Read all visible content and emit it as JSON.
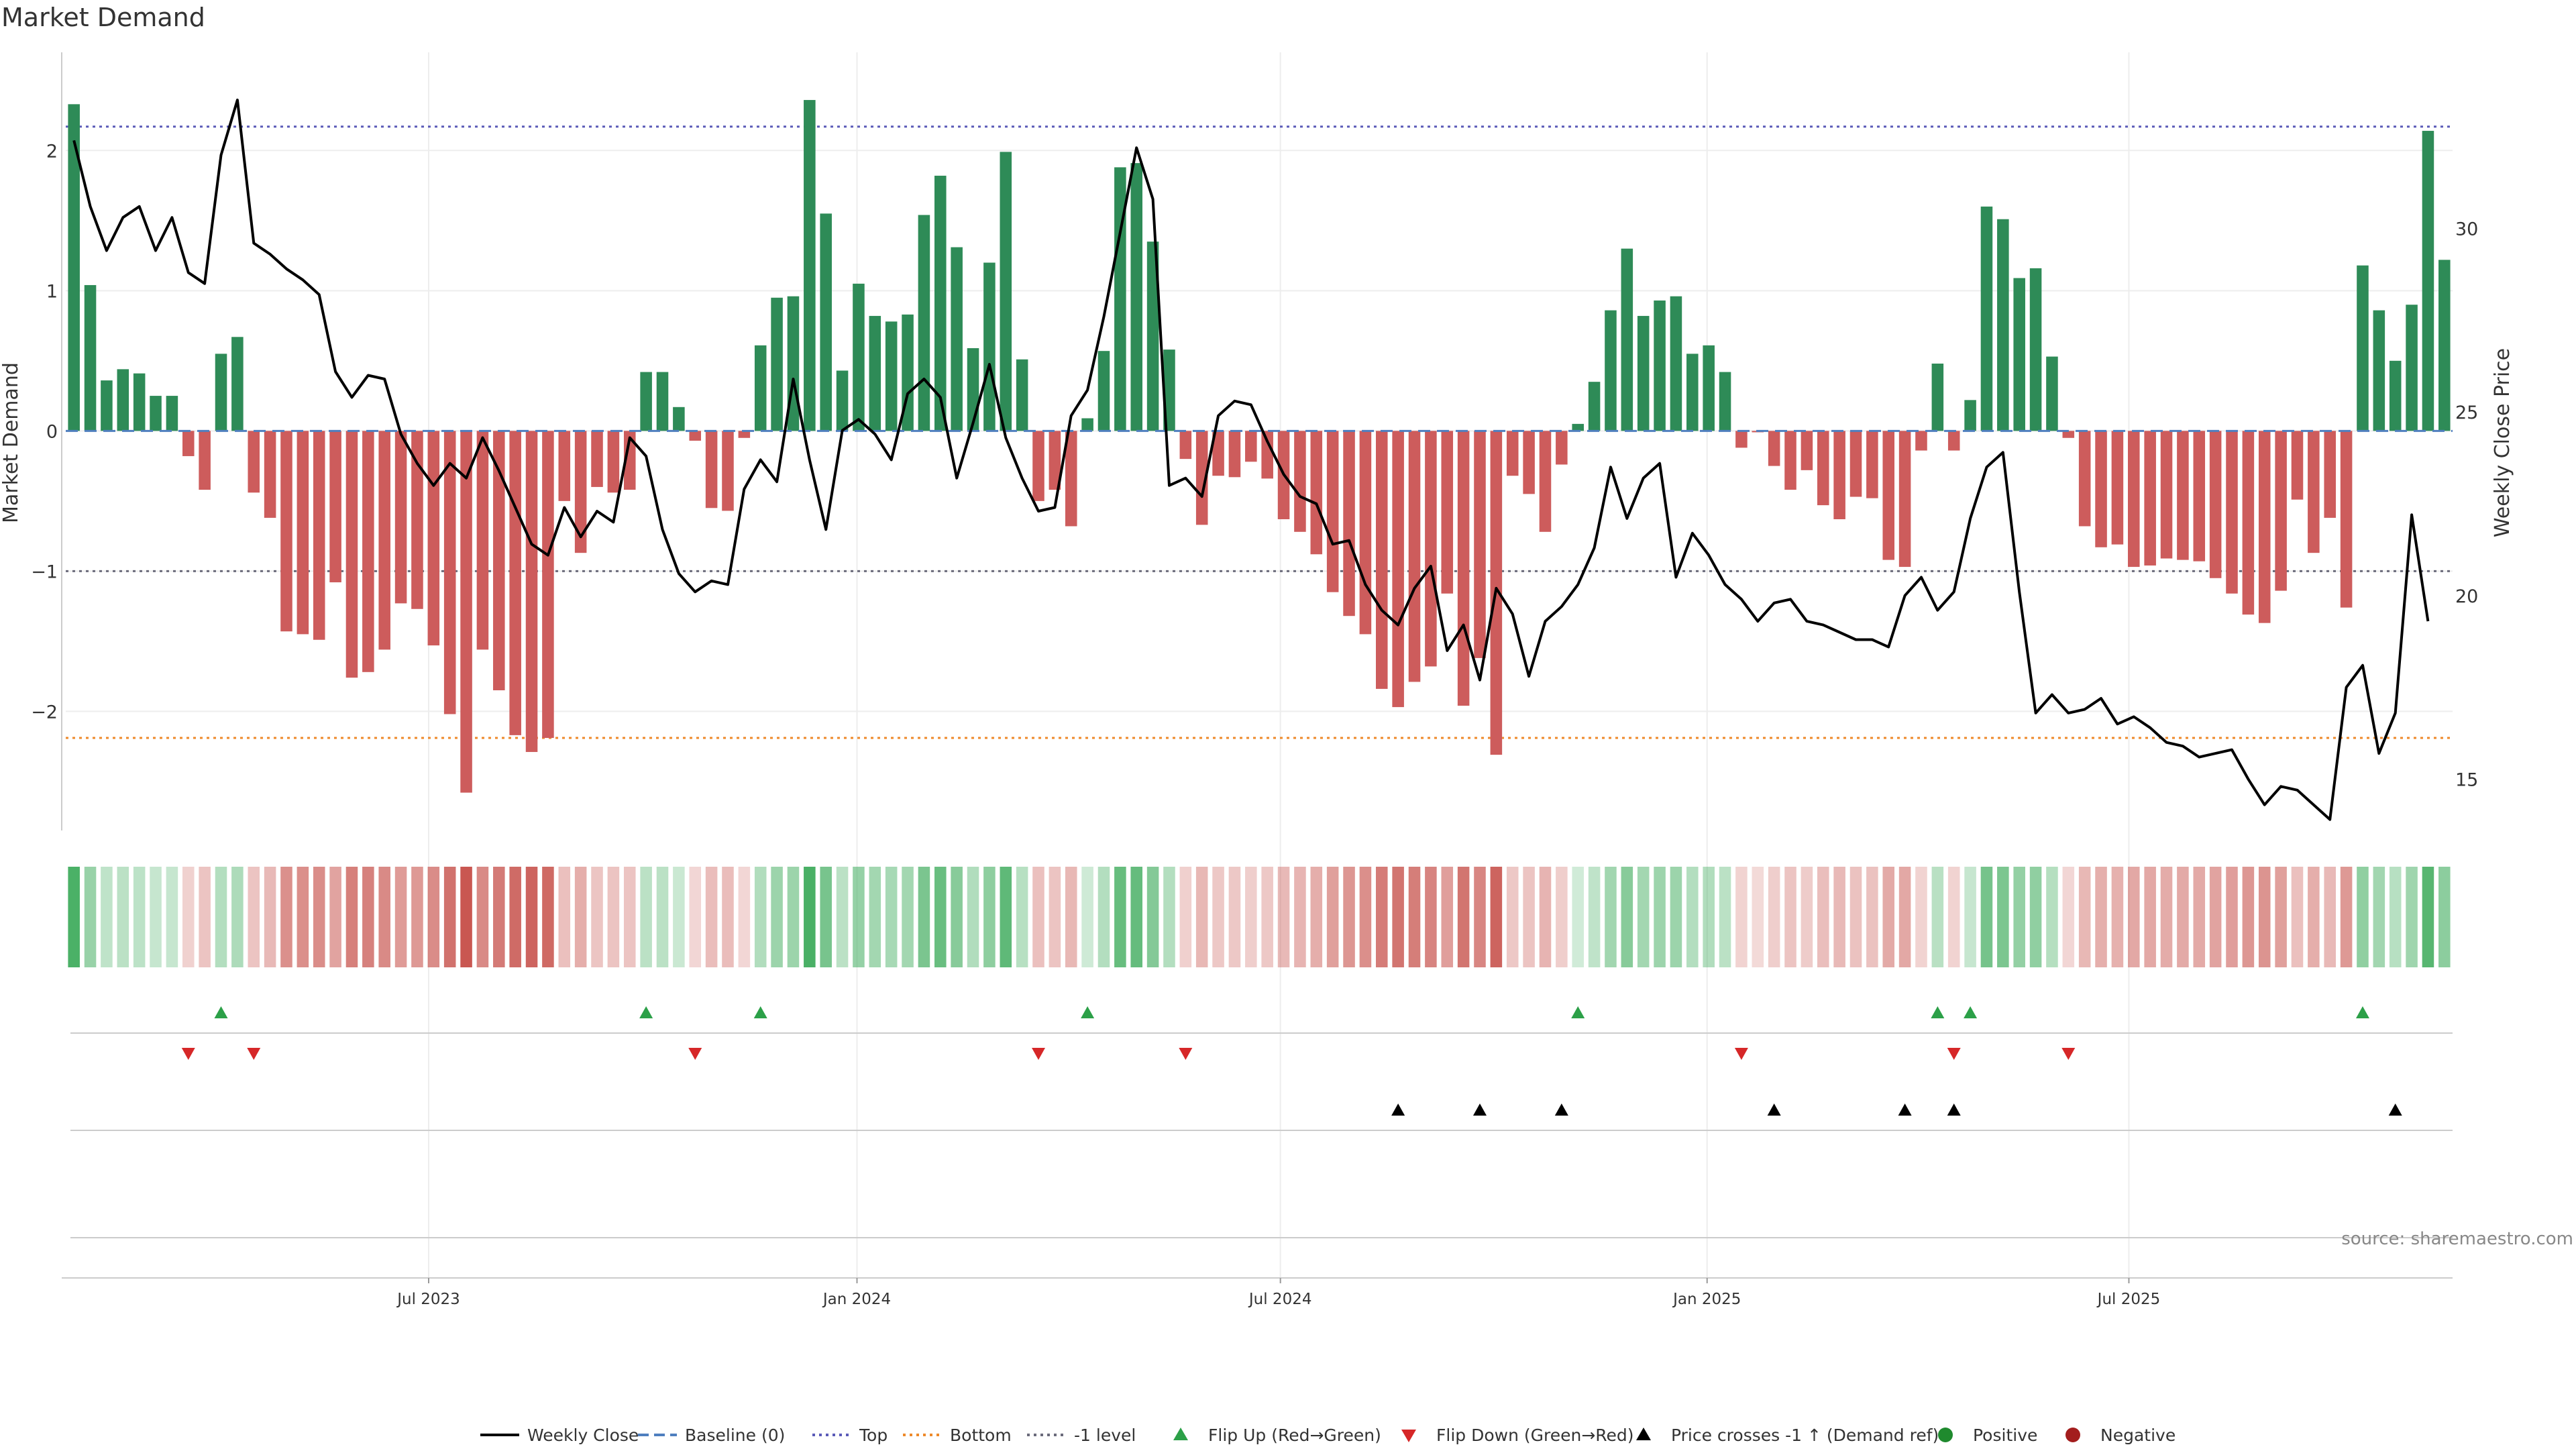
{
  "chart_data": {
    "type": "bar",
    "title": "Market Demand",
    "ylabel_left": "Market Demand",
    "ylabel_right": "Weekly Close Price",
    "left_yticks": [
      "2",
      "1",
      "0",
      "−1",
      "−2"
    ],
    "right_yticks": [
      "30",
      "25",
      "20",
      "15"
    ],
    "xticks": [
      "Jul 2023",
      "Jan 2024",
      "Jul 2024",
      "Jan 2025",
      "Jul 2025"
    ],
    "ylim_left": [
      -2.85,
      2.7
    ],
    "ylim_right": [
      13.6,
      34.8
    ],
    "levels": {
      "top": 2.17,
      "bottom": -2.19,
      "minus_one": -1.0,
      "baseline": 0.0
    },
    "demand": [
      2.33,
      1.04,
      0.36,
      0.44,
      0.41,
      0.25,
      0.25,
      -0.18,
      -0.42,
      0.55,
      0.67,
      -0.44,
      -0.62,
      -1.43,
      -1.45,
      -1.49,
      -1.08,
      -1.76,
      -1.72,
      -1.56,
      -1.23,
      -1.27,
      -1.53,
      -2.02,
      -2.58,
      -1.56,
      -1.85,
      -2.17,
      -2.29,
      -2.19,
      -0.5,
      -0.87,
      -0.4,
      -0.44,
      -0.42,
      0.42,
      0.42,
      0.17,
      -0.07,
      -0.55,
      -0.57,
      -0.05,
      0.61,
      0.95,
      0.96,
      2.36,
      1.55,
      0.43,
      1.05,
      0.82,
      0.78,
      0.83,
      1.54,
      1.82,
      1.31,
      0.59,
      1.2,
      1.99,
      0.51,
      -0.5,
      -0.42,
      -0.68,
      0.09,
      0.57,
      1.88,
      1.91,
      1.35,
      0.58,
      -0.2,
      -0.67,
      -0.32,
      -0.33,
      -0.22,
      -0.34,
      -0.63,
      -0.72,
      -0.88,
      -1.15,
      -1.32,
      -1.45,
      -1.84,
      -1.97,
      -1.79,
      -1.68,
      -1.16,
      -1.96,
      -1.62,
      -2.31,
      -0.32,
      -0.45,
      -0.72,
      -0.24,
      0.05,
      0.35,
      0.86,
      1.3,
      0.82,
      0.93,
      0.96,
      0.55,
      0.61,
      0.42,
      -0.12,
      -0.01,
      -0.25,
      -0.42,
      -0.28,
      -0.53,
      -0.63,
      -0.47,
      -0.48,
      -0.92,
      -0.97,
      -0.14,
      0.48,
      -0.14,
      0.22,
      1.6,
      1.51,
      1.09,
      1.16,
      0.53,
      -0.05,
      -0.68,
      -0.83,
      -0.81,
      -0.97,
      -0.96,
      -0.91,
      -0.92,
      -0.93,
      -1.05,
      -1.16,
      -1.31,
      -1.37,
      -1.14,
      -0.49,
      -0.87,
      -0.62,
      -1.26,
      1.18,
      0.86,
      0.5,
      0.9,
      2.14,
      1.22
    ],
    "close": [
      32.4,
      30.6,
      29.4,
      30.3,
      30.6,
      29.4,
      30.3,
      28.8,
      28.5,
      32.0,
      33.5,
      29.6,
      29.3,
      28.9,
      28.6,
      28.2,
      26.1,
      25.4,
      26.0,
      25.9,
      24.4,
      23.6,
      23.0,
      23.6,
      23.2,
      24.3,
      23.4,
      22.4,
      21.4,
      21.1,
      22.4,
      21.6,
      22.3,
      22.0,
      24.3,
      23.8,
      21.8,
      20.6,
      20.1,
      20.4,
      20.3,
      22.9,
      23.7,
      23.1,
      25.9,
      23.7,
      21.8,
      24.5,
      24.8,
      24.4,
      23.7,
      25.5,
      25.9,
      25.4,
      23.2,
      24.7,
      26.3,
      24.3,
      23.2,
      22.3,
      22.4,
      24.9,
      25.6,
      27.6,
      29.9,
      32.2,
      30.8,
      23.0,
      23.2,
      22.7,
      24.9,
      25.3,
      25.2,
      24.2,
      23.3,
      22.7,
      22.5,
      21.4,
      21.5,
      20.3,
      19.6,
      19.2,
      20.2,
      20.8,
      18.5,
      19.2,
      17.7,
      20.2,
      19.5,
      17.8,
      19.3,
      19.7,
      20.3,
      21.3,
      23.5,
      22.1,
      23.2,
      23.6,
      20.5,
      21.7,
      21.1,
      20.3,
      19.9,
      19.3,
      19.8,
      19.9,
      19.3,
      19.2,
      19.0,
      18.8,
      18.8,
      18.6,
      20.0,
      20.5,
      19.6,
      20.1,
      22.1,
      23.5,
      23.9,
      20.1,
      16.8,
      17.3,
      16.8,
      16.9,
      17.2,
      16.5,
      16.7,
      16.4,
      16.0,
      15.9,
      15.6,
      15.7,
      15.8,
      15.0,
      14.3,
      14.8,
      14.7,
      14.3,
      13.9,
      17.5,
      18.1,
      15.7,
      16.8,
      22.2,
      19.3
    ]
  },
  "legend": [
    {
      "label": "Weekly Close",
      "icon": "line-solid",
      "color": "#000000"
    },
    {
      "label": "Baseline (0)",
      "icon": "line-dashed",
      "color": "#4f7fbf"
    },
    {
      "label": "Top",
      "icon": "line-dotted",
      "color": "#5b5bb8"
    },
    {
      "label": "Bottom",
      "icon": "line-dotted",
      "color": "#ee8a2a"
    },
    {
      "label": "-1 level",
      "icon": "line-dotted",
      "color": "#6b6b7b"
    },
    {
      "label": "Flip Up (Red→Green)",
      "icon": "triangle-up",
      "color": "#2ca048"
    },
    {
      "label": "Flip Down (Green→Red)",
      "icon": "triangle-down",
      "color": "#d62728"
    },
    {
      "label": "Price crosses -1 ↑ (Demand ref)",
      "icon": "triangle-up",
      "color": "#000000"
    },
    {
      "label": "Positive",
      "icon": "circle",
      "color": "#1f8a2e"
    },
    {
      "label": "Negative",
      "icon": "circle",
      "color": "#a31d1d"
    }
  ],
  "source": "source: sharemaestro.com",
  "colors": {
    "positive": "#2e8b57",
    "negative": "#cd5c5c"
  }
}
